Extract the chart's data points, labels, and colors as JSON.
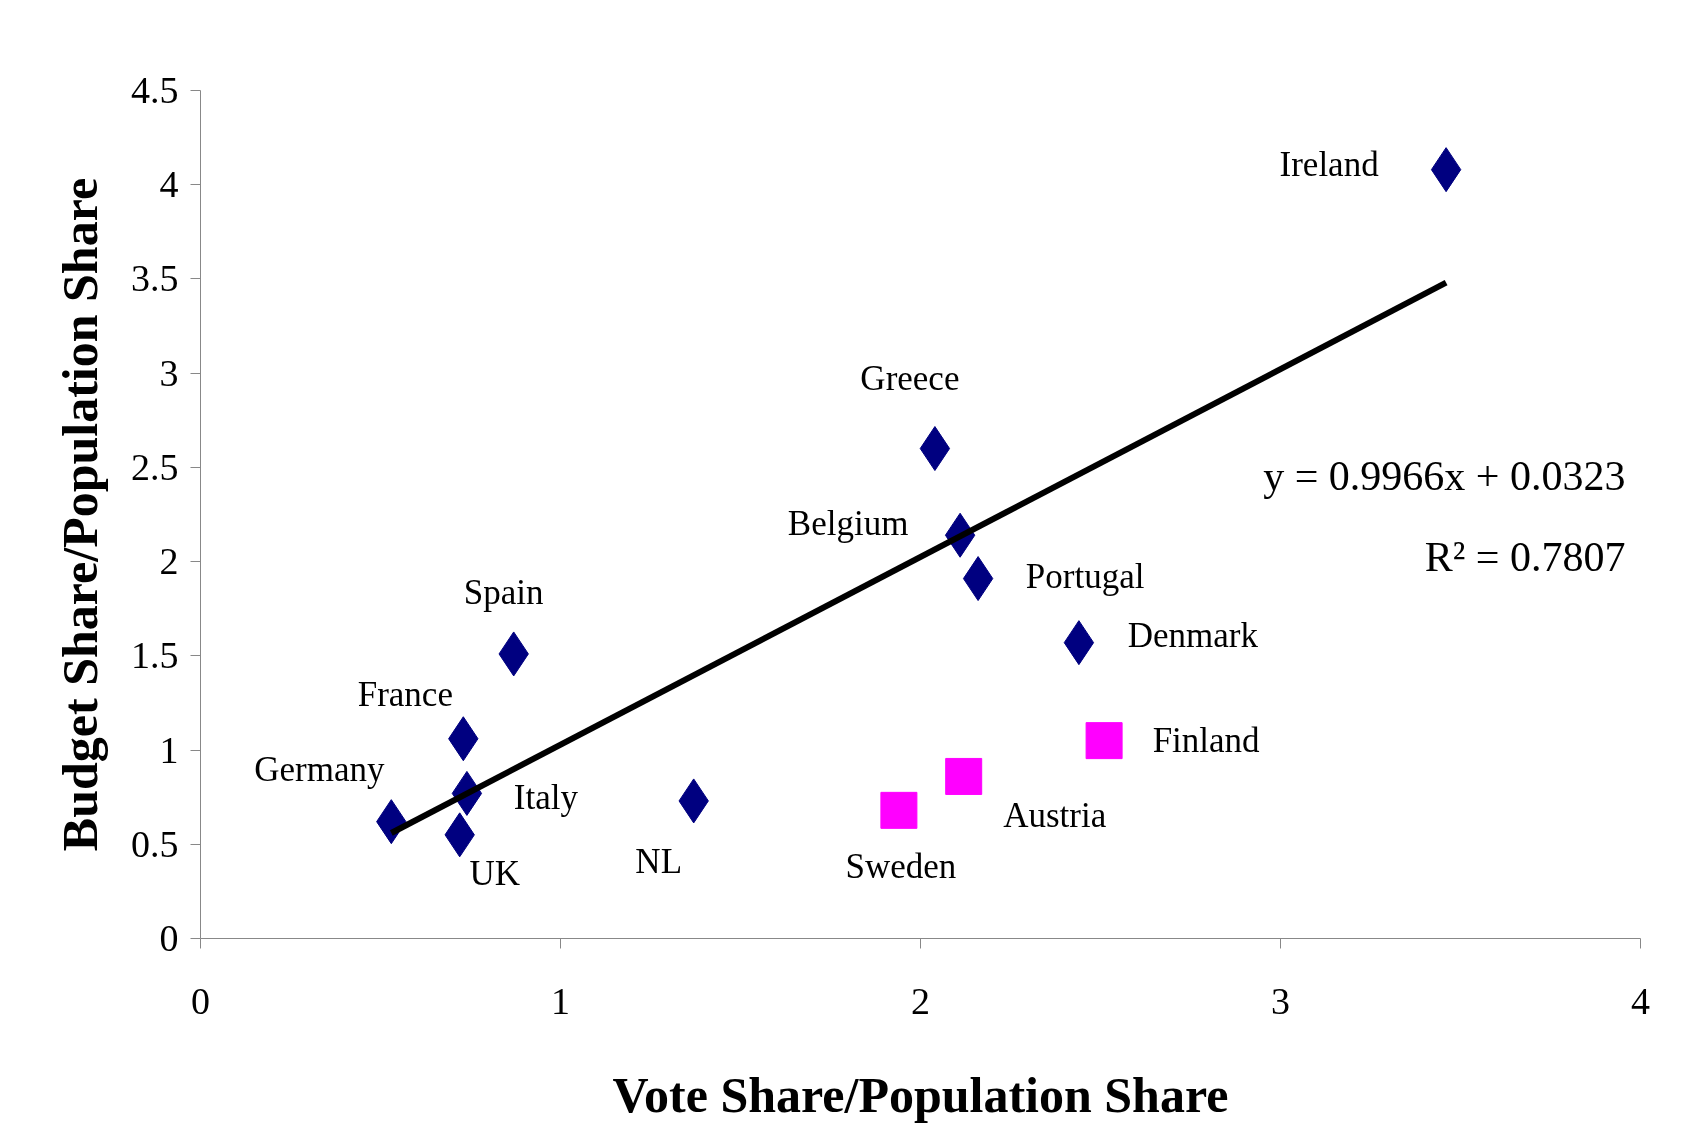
{
  "chart_data": {
    "type": "scatter",
    "xlabel": "Vote Share/Population Share",
    "ylabel": "Budget Share/Population Share",
    "xlim": [
      0,
      4
    ],
    "ylim": [
      0,
      4.5
    ],
    "xticks": [
      0,
      1,
      2,
      3,
      4
    ],
    "yticks": [
      0,
      0.5,
      1,
      1.5,
      2,
      2.5,
      3,
      3.5,
      4,
      4.5
    ],
    "grid": false,
    "series": [
      {
        "marker": "diamond",
        "color": "#000080",
        "x": [
          3.46,
          2.04,
          2.11,
          2.16,
          2.44,
          0.87,
          0.73,
          0.74,
          0.53,
          0.72,
          1.37
        ],
        "values": [
          4.08,
          2.6,
          2.14,
          1.91,
          1.57,
          1.51,
          1.06,
          0.77,
          0.62,
          0.55,
          0.73
        ]
      },
      {
        "marker": "square",
        "color": "#ff00ff",
        "x": [
          1.94,
          2.12,
          2.51
        ],
        "values": [
          0.68,
          0.86,
          1.05
        ]
      },
      {
        "type": "line",
        "marker": "none",
        "color": "#000000",
        "x": [
          0.53,
          3.46
        ],
        "values": [
          0.56,
          3.48
        ]
      }
    ],
    "annotations": [
      {
        "text": "Ireland",
        "x": 3.46,
        "y": 4.08
      },
      {
        "text": "Greece",
        "x": 2.04,
        "y": 2.6
      },
      {
        "text": "Belgium",
        "x": 2.11,
        "y": 2.14
      },
      {
        "text": "Portugal",
        "x": 2.16,
        "y": 1.91
      },
      {
        "text": "Denmark",
        "x": 2.44,
        "y": 1.57
      },
      {
        "text": "Spain",
        "x": 0.87,
        "y": 1.51
      },
      {
        "text": "France",
        "x": 0.73,
        "y": 1.06
      },
      {
        "text": "Italy",
        "x": 0.74,
        "y": 0.77
      },
      {
        "text": "Germany",
        "x": 0.53,
        "y": 0.62
      },
      {
        "text": "UK",
        "x": 0.72,
        "y": 0.55
      },
      {
        "text": "NL",
        "x": 1.37,
        "y": 0.73
      },
      {
        "text": "Sweden",
        "x": 1.94,
        "y": 0.68
      },
      {
        "text": "Austria",
        "x": 2.12,
        "y": 0.86
      },
      {
        "text": "Finland",
        "x": 2.51,
        "y": 1.05
      },
      "y = 0.9966x + 0.0323",
      "R² = 0.7807"
    ]
  }
}
